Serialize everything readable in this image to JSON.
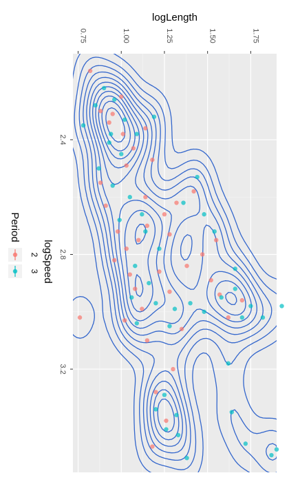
{
  "chart_data": {
    "type": "scatter",
    "orientation": "rotated-90",
    "title": "",
    "xlabel": "logLength",
    "ylabel": "logSpeed",
    "xticks": [
      "0.75",
      "1.00",
      "1.25",
      "1.50",
      "1.75"
    ],
    "xtick_values": [
      0.75,
      1.0,
      1.25,
      1.5,
      1.75
    ],
    "yticks": [
      "2.4",
      "2.8",
      "3.2"
    ],
    "ytick_values": [
      2.4,
      2.8,
      3.2
    ],
    "xlim": [
      0.72,
      1.9
    ],
    "ylim": [
      2.1,
      3.56
    ],
    "grid": true,
    "panel_color": "#ebebeb",
    "density_overlay": {
      "type": "contour",
      "color": "#3366cc"
    },
    "legend": {
      "title": "Period",
      "position": "left",
      "entries": [
        {
          "label": "2",
          "color": "#F8766D"
        },
        {
          "label": "3",
          "color": "#00BFC4"
        }
      ]
    },
    "series": [
      {
        "name": "2",
        "color": "#F8766D",
        "points": [
          [
            0.82,
            2.16
          ],
          [
            0.93,
            2.34
          ],
          [
            0.95,
            2.31
          ],
          [
            1.01,
            2.38
          ],
          [
            1.03,
            2.49
          ],
          [
            0.88,
            2.55
          ],
          [
            1.07,
            2.43
          ],
          [
            1.14,
            2.36
          ],
          [
            1.18,
            2.47
          ],
          [
            0.91,
            2.63
          ],
          [
            0.98,
            2.72
          ],
          [
            1.03,
            2.78
          ],
          [
            0.96,
            2.82
          ],
          [
            1.05,
            2.87
          ],
          [
            1.08,
            2.92
          ],
          [
            1.12,
            2.99
          ],
          [
            1.02,
            3.03
          ],
          [
            1.1,
            2.75
          ],
          [
            1.15,
            2.7
          ],
          [
            1.25,
            2.66
          ],
          [
            1.32,
            2.62
          ],
          [
            1.28,
            2.73
          ],
          [
            1.22,
            2.86
          ],
          [
            1.28,
            2.93
          ],
          [
            1.38,
            2.84
          ],
          [
            1.47,
            2.8
          ],
          [
            1.52,
            2.89
          ],
          [
            1.55,
            2.75
          ],
          [
            1.42,
            2.58
          ],
          [
            1.57,
            2.94
          ],
          [
            1.62,
            3.02
          ],
          [
            1.7,
            2.96
          ],
          [
            0.76,
            3.02
          ],
          [
            1.15,
            3.1
          ],
          [
            1.3,
            3.2
          ],
          [
            1.35,
            3.06
          ],
          [
            1.2,
            3.28
          ],
          [
            1.26,
            3.38
          ],
          [
            1.18,
            3.47
          ],
          [
            1.14,
            2.6
          ],
          [
            1.0,
            2.25
          ],
          [
            0.88,
            2.3
          ]
        ]
      },
      {
        "name": "3",
        "color": "#00BFC4",
        "points": [
          [
            0.78,
            2.35
          ],
          [
            0.85,
            2.28
          ],
          [
            0.9,
            2.22
          ],
          [
            0.96,
            2.26
          ],
          [
            1.02,
            2.33
          ],
          [
            0.93,
            2.41
          ],
          [
            1.0,
            2.45
          ],
          [
            1.09,
            2.38
          ],
          [
            1.19,
            2.32
          ],
          [
            0.87,
            2.5
          ],
          [
            0.95,
            2.56
          ],
          [
            1.05,
            2.6
          ],
          [
            1.12,
            2.66
          ],
          [
            0.99,
            2.68
          ],
          [
            1.08,
            2.84
          ],
          [
            1.16,
            2.9
          ],
          [
            1.09,
            3.04
          ],
          [
            1.2,
            2.97
          ],
          [
            1.31,
            2.99
          ],
          [
            1.4,
            2.97
          ],
          [
            1.48,
            3.0
          ],
          [
            1.58,
            2.95
          ],
          [
            1.66,
            2.92
          ],
          [
            1.75,
            2.98
          ],
          [
            1.82,
            3.02
          ],
          [
            1.93,
            2.98
          ],
          [
            1.36,
            2.62
          ],
          [
            1.44,
            2.53
          ],
          [
            1.48,
            2.66
          ],
          [
            1.54,
            2.72
          ],
          [
            1.66,
            2.85
          ],
          [
            1.7,
            3.02
          ],
          [
            1.25,
            3.29
          ],
          [
            1.33,
            3.43
          ],
          [
            1.38,
            3.51
          ],
          [
            1.2,
            3.34
          ],
          [
            1.26,
            3.41
          ],
          [
            1.32,
            3.36
          ],
          [
            1.64,
            3.35
          ],
          [
            1.72,
            3.46
          ],
          [
            1.9,
            3.48
          ],
          [
            1.87,
            3.5
          ],
          [
            1.62,
            3.18
          ],
          [
            1.22,
            2.78
          ],
          [
            1.14,
            2.72
          ],
          [
            0.94,
            2.38
          ],
          [
            1.06,
            2.95
          ],
          [
            1.28,
            3.05
          ]
        ]
      }
    ]
  }
}
